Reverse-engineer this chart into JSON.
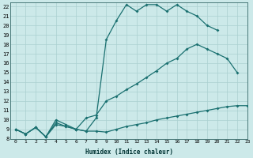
{
  "xlabel": "Humidex (Indice chaleur)",
  "background_color": "#cce9e9",
  "grid_color": "#aad0d0",
  "line_color": "#1a7070",
  "xlim": [
    -0.5,
    23
  ],
  "ylim": [
    8,
    22.4
  ],
  "line1_x": [
    0,
    1,
    2,
    3,
    4,
    5,
    6,
    7,
    8,
    9,
    10,
    11,
    12,
    13,
    14,
    15,
    16,
    17,
    18,
    19,
    20
  ],
  "line1_y": [
    9.0,
    8.5,
    9.2,
    8.2,
    10.0,
    9.5,
    9.0,
    8.8,
    10.2,
    18.5,
    20.5,
    22.2,
    21.5,
    22.2,
    22.2,
    21.5,
    22.2,
    21.5,
    21.0,
    20.0,
    19.5
  ],
  "line2_x": [
    0,
    1,
    2,
    3,
    4,
    5,
    6,
    7,
    8,
    9,
    10,
    11,
    12,
    13,
    14,
    15,
    16,
    17,
    18,
    19,
    20,
    21,
    22
  ],
  "line2_y": [
    9.0,
    8.5,
    9.2,
    8.2,
    9.7,
    9.3,
    9.0,
    10.2,
    10.5,
    12.0,
    12.5,
    13.2,
    13.8,
    14.5,
    15.2,
    16.0,
    16.5,
    17.5,
    18.0,
    17.5,
    17.0,
    16.5,
    15.0
  ],
  "line3_x": [
    0,
    1,
    2,
    3,
    4,
    5,
    6,
    7,
    8,
    9,
    10,
    11,
    12,
    13,
    14,
    15,
    16,
    17,
    18,
    19,
    20,
    21,
    22,
    23
  ],
  "line3_y": [
    9.0,
    8.5,
    9.2,
    8.2,
    9.5,
    9.3,
    9.0,
    8.8,
    8.8,
    8.7,
    9.0,
    9.3,
    9.5,
    9.7,
    10.0,
    10.2,
    10.4,
    10.6,
    10.8,
    11.0,
    11.2,
    11.4,
    11.5,
    11.5
  ],
  "xticks": [
    0,
    1,
    2,
    3,
    4,
    5,
    6,
    7,
    8,
    9,
    10,
    11,
    12,
    13,
    14,
    15,
    16,
    17,
    18,
    19,
    20,
    21,
    22,
    23
  ],
  "yticks": [
    8,
    9,
    10,
    11,
    12,
    13,
    14,
    15,
    16,
    17,
    18,
    19,
    20,
    21,
    22
  ]
}
